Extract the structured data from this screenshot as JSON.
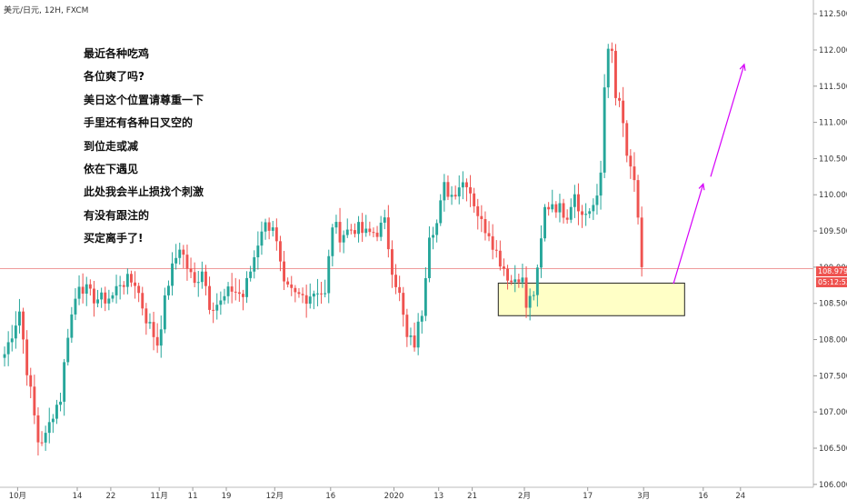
{
  "header": {
    "symbol": "美元/日元, 12H, FXCM"
  },
  "annotations": {
    "lines": [
      "最近各种吃鸡",
      "各位爽了吗?",
      "美日这个位置请尊重一下",
      "手里还有各种日叉空的",
      "到位走或减",
      "依在下遇见",
      "此处我会半止损找个刺激",
      "有没有跟注的",
      "买定离手了!"
    ]
  },
  "price_tag": {
    "price": "108.979",
    "countdown": "05:12:53"
  },
  "colors": {
    "up": "#26a69a",
    "down": "#ef5350",
    "zone_fill": "#ffffc0",
    "arrow": "#d500f9",
    "price_line": "#ef9a9a"
  },
  "chart_data": {
    "type": "candlestick",
    "title": "美元/日元, 12H, FXCM",
    "y_ticks": [
      "112.500",
      "112.000",
      "111.500",
      "111.000",
      "110.500",
      "110.000",
      "109.500",
      "109.000",
      "108.500",
      "108.000",
      "107.500",
      "107.000",
      "106.500",
      "106.000"
    ],
    "ylim": [
      105.96,
      112.69
    ],
    "x_ticks": [
      "10月",
      "14",
      "22",
      "11月",
      "11",
      "19",
      "12月",
      "16",
      "2020",
      "13",
      "21",
      "2月",
      "17",
      "3月",
      "16",
      "24"
    ],
    "x_tick_bar_index": [
      4,
      20,
      29,
      42,
      51,
      60,
      73,
      88,
      105,
      117,
      126,
      140,
      157,
      172,
      188,
      198
    ],
    "current_price": 108.979,
    "support_zone": {
      "bar_start": 133,
      "bar_end": 183,
      "y_top": 108.78,
      "y_bottom": 108.33
    },
    "projection_arrows": [
      {
        "from": {
          "bar": 180,
          "y": 108.77
        },
        "to": {
          "bar": 188,
          "y": 110.15
        }
      },
      {
        "from": {
          "bar": 190,
          "y": 110.25
        },
        "to": {
          "bar": 199,
          "y": 111.8
        }
      }
    ],
    "waypoints": [
      [
        0,
        107.8
      ],
      [
        4,
        108.4
      ],
      [
        6,
        107.6
      ],
      [
        9,
        106.6
      ],
      [
        11,
        106.65
      ],
      [
        13,
        107.0
      ],
      [
        15,
        107.2
      ],
      [
        17,
        108.1
      ],
      [
        20,
        108.8
      ],
      [
        23,
        108.6
      ],
      [
        26,
        108.55
      ],
      [
        29,
        108.6
      ],
      [
        31,
        108.8
      ],
      [
        35,
        108.8
      ],
      [
        38,
        108.3
      ],
      [
        41,
        107.95
      ],
      [
        44,
        108.8
      ],
      [
        47,
        109.3
      ],
      [
        49,
        109.0
      ],
      [
        51,
        108.75
      ],
      [
        53,
        109.0
      ],
      [
        55,
        108.5
      ],
      [
        58,
        108.5
      ],
      [
        61,
        108.7
      ],
      [
        64,
        108.6
      ],
      [
        66,
        108.95
      ],
      [
        69,
        109.55
      ],
      [
        72,
        109.6
      ],
      [
        75,
        108.7
      ],
      [
        78,
        108.6
      ],
      [
        81,
        108.6
      ],
      [
        84,
        108.7
      ],
      [
        86,
        108.6
      ],
      [
        88,
        109.6
      ],
      [
        90,
        109.45
      ],
      [
        92,
        109.5
      ],
      [
        94,
        109.55
      ],
      [
        97,
        109.45
      ],
      [
        100,
        109.5
      ],
      [
        102,
        109.6
      ],
      [
        104,
        109.0
      ],
      [
        106,
        108.6
      ],
      [
        108,
        108.0
      ],
      [
        110,
        107.95
      ],
      [
        112,
        108.4
      ],
      [
        114,
        109.5
      ],
      [
        116,
        109.6
      ],
      [
        118,
        110.1
      ],
      [
        120,
        110.0
      ],
      [
        122,
        110.15
      ],
      [
        124,
        110.2
      ],
      [
        126,
        109.9
      ],
      [
        128,
        109.6
      ],
      [
        130,
        109.5
      ],
      [
        132,
        109.2
      ],
      [
        134,
        109.0
      ],
      [
        136,
        108.8
      ],
      [
        138,
        108.9
      ],
      [
        139,
        108.8
      ],
      [
        140,
        108.45
      ],
      [
        142,
        108.65
      ],
      [
        143,
        108.9
      ],
      [
        145,
        109.8
      ],
      [
        147,
        109.9
      ],
      [
        149,
        109.8
      ],
      [
        151,
        109.75
      ],
      [
        153,
        110.05
      ],
      [
        155,
        109.7
      ],
      [
        157,
        109.8
      ],
      [
        159,
        109.9
      ],
      [
        160,
        110.3
      ],
      [
        161,
        111.5
      ],
      [
        162,
        112.1
      ],
      [
        163,
        111.9
      ],
      [
        164,
        111.3
      ],
      [
        165,
        111.3
      ],
      [
        167,
        110.5
      ],
      [
        168,
        110.4
      ],
      [
        169,
        110.1
      ],
      [
        170,
        109.6
      ],
      [
        171,
        109.0
      ]
    ]
  }
}
